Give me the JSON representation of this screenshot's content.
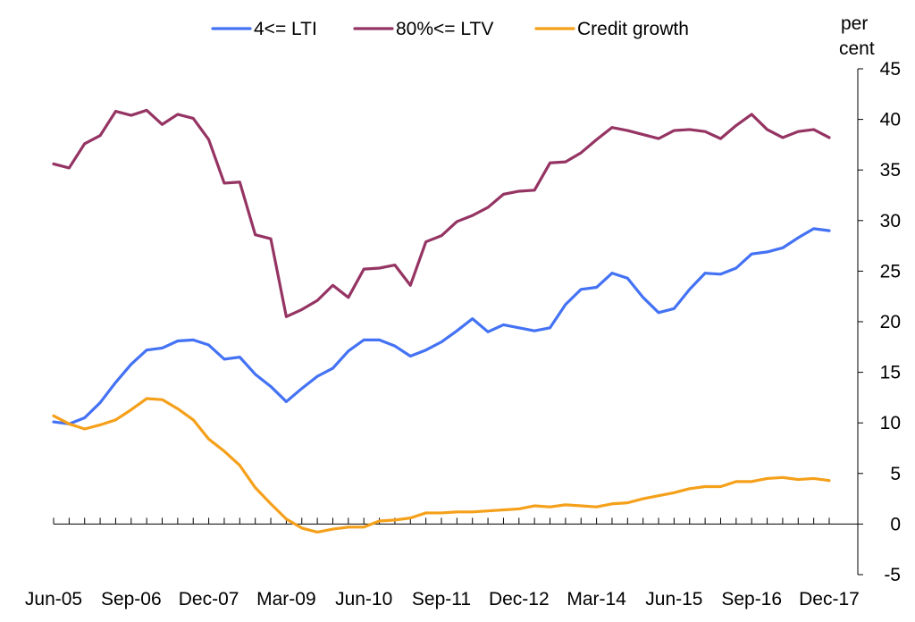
{
  "chart_data": {
    "type": "line",
    "y_unit": [
      "per",
      "cent"
    ],
    "y_axis_side": "right",
    "ylim": [
      -5,
      45
    ],
    "y_ticks": [
      -5,
      0,
      5,
      10,
      15,
      20,
      25,
      30,
      35,
      40,
      45
    ],
    "x_tick_labels": [
      "Jun-05",
      "Sep-06",
      "Dec-07",
      "Mar-09",
      "Jun-10",
      "Sep-11",
      "Dec-12",
      "Mar-14",
      "Jun-15",
      "Sep-16",
      "Dec-17"
    ],
    "x_tick_label_positions": [
      0,
      5,
      10,
      15,
      20,
      25,
      30,
      35,
      40,
      45,
      50
    ],
    "x_count": 51,
    "legend_position": "top",
    "series": [
      {
        "name": "4<= LTI",
        "color": "#4472F4",
        "values": [
          10.1,
          9.9,
          10.5,
          12.0,
          14.0,
          15.8,
          17.2,
          17.4,
          18.1,
          18.2,
          17.7,
          16.3,
          16.5,
          14.8,
          13.6,
          12.1,
          13.4,
          14.6,
          15.4,
          17.1,
          18.2,
          18.2,
          17.6,
          16.6,
          17.2,
          18.0,
          19.1,
          20.3,
          19.0,
          19.7,
          19.4,
          19.1,
          19.4,
          21.7,
          23.2,
          23.4,
          24.8,
          24.3,
          22.4,
          20.9,
          21.3,
          23.2,
          24.8,
          24.7,
          25.3,
          26.7,
          26.9,
          27.3,
          28.3,
          29.2,
          29.0
        ]
      },
      {
        "name": "80%<= LTV",
        "color": "#953463",
        "values": [
          35.6,
          35.2,
          37.6,
          38.4,
          40.8,
          40.4,
          40.9,
          39.5,
          40.5,
          40.1,
          38.0,
          33.7,
          33.8,
          28.6,
          28.2,
          20.5,
          21.2,
          22.1,
          23.6,
          22.4,
          25.2,
          25.3,
          25.6,
          23.6,
          27.9,
          28.5,
          29.9,
          30.5,
          31.3,
          32.6,
          32.9,
          33.0,
          35.7,
          35.8,
          36.7,
          38.0,
          39.2,
          38.9,
          38.5,
          38.1,
          38.9,
          39.0,
          38.8,
          38.1,
          39.4,
          40.5,
          39.0,
          38.2,
          38.8,
          39.0,
          38.2
        ]
      },
      {
        "name": "Credit growth",
        "color": "#F5A01A",
        "values": [
          10.7,
          9.9,
          9.4,
          9.8,
          10.3,
          11.3,
          12.4,
          12.3,
          11.4,
          10.3,
          8.4,
          7.2,
          5.8,
          3.6,
          2.0,
          0.5,
          -0.4,
          -0.8,
          -0.5,
          -0.3,
          -0.3,
          0.3,
          0.4,
          0.6,
          1.1,
          1.1,
          1.2,
          1.2,
          1.3,
          1.4,
          1.5,
          1.8,
          1.7,
          1.9,
          1.8,
          1.7,
          2.0,
          2.1,
          2.5,
          2.8,
          3.1,
          3.5,
          3.7,
          3.7,
          4.2,
          4.2,
          4.5,
          4.6,
          4.4,
          4.5,
          4.3
        ]
      }
    ]
  }
}
